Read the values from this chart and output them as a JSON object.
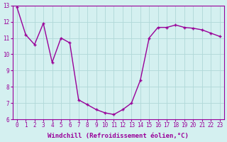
{
  "x": [
    0,
    1,
    2,
    3,
    4,
    5,
    6,
    7,
    8,
    9,
    10,
    11,
    12,
    13,
    14,
    15,
    16,
    17,
    18,
    19,
    20,
    21,
    22,
    23
  ],
  "y": [
    12.9,
    11.2,
    10.6,
    11.9,
    9.5,
    11.0,
    10.7,
    7.2,
    6.9,
    6.6,
    6.4,
    6.3,
    6.6,
    7.0,
    8.4,
    11.0,
    11.65,
    11.65,
    11.8,
    11.65,
    11.6,
    11.5,
    11.3,
    11.1
  ],
  "line_color": "#990099",
  "marker": "+",
  "marker_size": 3,
  "marker_linewidth": 1.0,
  "background_color": "#d4f0f0",
  "grid_color": "#b0d8d8",
  "xlabel": "Windchill (Refroidissement éolien,°C)",
  "ylim": [
    6,
    13
  ],
  "xlim": [
    -0.5,
    23.5
  ],
  "yticks": [
    6,
    7,
    8,
    9,
    10,
    11,
    12,
    13
  ],
  "xticks": [
    0,
    1,
    2,
    3,
    4,
    5,
    6,
    7,
    8,
    9,
    10,
    11,
    12,
    13,
    14,
    15,
    16,
    17,
    18,
    19,
    20,
    21,
    22,
    23
  ],
  "label_color": "#990099",
  "tick_color": "#990099",
  "spine_color": "#990099",
  "line_width": 1.0,
  "xlabel_fontsize": 6.5,
  "tick_fontsize": 5.5
}
